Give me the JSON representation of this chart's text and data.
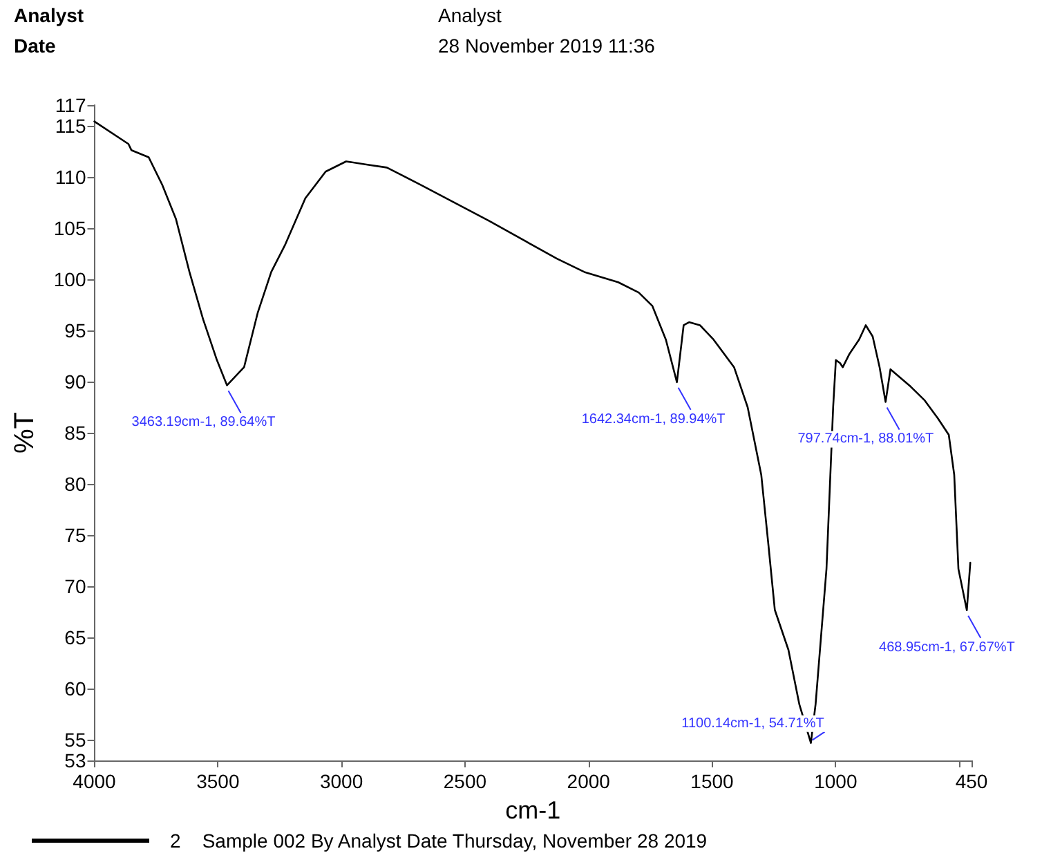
{
  "chart_data": {
    "type": "line",
    "xlabel": "cm-1",
    "ylabel": "%T",
    "xlim": [
      4000,
      450
    ],
    "xticks": [
      4000,
      3500,
      3000,
      2500,
      2000,
      1500,
      1000,
      {
        "value": 500,
        "label": null
      },
      450
    ],
    "ylim": [
      53,
      117
    ],
    "yticks": [
      53,
      55,
      60,
      65,
      70,
      75,
      80,
      85,
      90,
      95,
      100,
      105,
      110,
      115,
      117
    ],
    "grid": false,
    "marker": "none",
    "line_style": "solid",
    "legend": "bottom",
    "annotations": [
      "Analyst",
      "Date",
      "Analyst",
      "28 November 2019 11:36",
      {
        "text": "3463.19cm-1, 89.64%T",
        "x": 3463.19,
        "y": 89.64
      },
      {
        "text": "1642.34cm-1, 89.94%T",
        "x": 1642.34,
        "y": 89.94
      },
      {
        "text": "1100.14cm-1, 54.71%T",
        "x": 1100.14,
        "y": 54.71
      },
      {
        "text": "797.74cm-1, 88.01%T",
        "x": 797.74,
        "y": 88.01
      },
      {
        "text": "468.95cm-1, 67.67%T",
        "x": 468.95,
        "y": 67.67
      }
    ],
    "series": [
      {
        "name": "2    Sample 002 By Analyst Date Thursday, November 28 2019",
        "color": "#000000",
        "x": [
          4000,
          3862,
          3850,
          3780,
          3725,
          3670,
          3615,
          3560,
          3504,
          3463.19,
          3394,
          3339,
          3284,
          3229,
          3146,
          3064,
          2981,
          2899,
          2816,
          2678,
          2403,
          2128,
          2017,
          1880,
          1797,
          1742,
          1687,
          1642.34,
          1615,
          1593,
          1549,
          1494,
          1411,
          1356,
          1301,
          1273,
          1246,
          1191,
          1147,
          1100.14,
          1081,
          1037,
          1010,
          999,
          982,
          971,
          944,
          905,
          878,
          850,
          822,
          797.74,
          778,
          696,
          641,
          586,
          542,
          520,
          503,
          468.95,
          455
        ],
        "values": [
          115.4,
          113.2,
          112.6,
          111.9,
          109.2,
          105.9,
          100.7,
          96.1,
          92.1,
          89.64,
          91.4,
          96.7,
          100.7,
          103.3,
          107.9,
          110.5,
          111.5,
          111.2,
          110.9,
          109.2,
          105.7,
          102.0,
          100.7,
          99.7,
          98.7,
          97.4,
          94.1,
          89.94,
          95.5,
          95.8,
          95.5,
          94.1,
          91.4,
          87.5,
          80.9,
          74.3,
          67.7,
          63.8,
          58.5,
          54.71,
          58.5,
          71.7,
          87.5,
          92.1,
          91.8,
          91.4,
          92.7,
          94.1,
          95.5,
          94.4,
          91.4,
          88.01,
          91.2,
          89.5,
          88.2,
          86.4,
          84.8,
          80.9,
          71.7,
          67.67,
          72.3
        ]
      }
    ]
  }
}
